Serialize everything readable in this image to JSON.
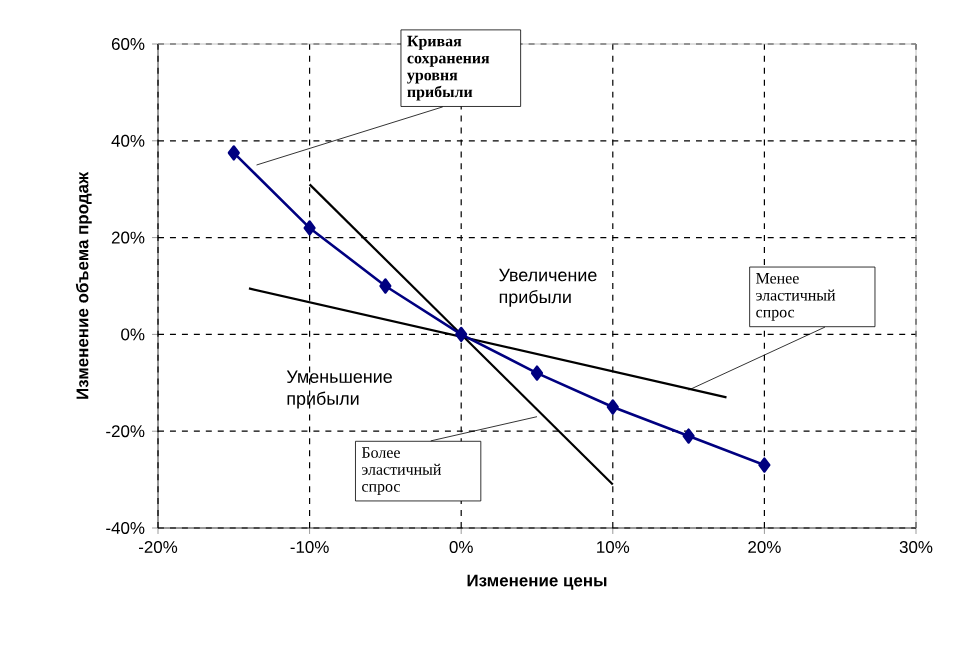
{
  "chart_data": {
    "type": "line",
    "xlabel": "Изменение цены",
    "ylabel": "Изменение объема продаж",
    "xlim": [
      -20,
      30
    ],
    "ylim": [
      -40,
      60
    ],
    "xticks": [
      {
        "value": -20,
        "label": "-20%"
      },
      {
        "value": -10,
        "label": "-10%"
      },
      {
        "value": 0,
        "label": "0%"
      },
      {
        "value": 10,
        "label": "10%"
      },
      {
        "value": 20,
        "label": "20%"
      },
      {
        "value": 30,
        "label": "30%"
      }
    ],
    "yticks": [
      {
        "value": -40,
        "label": "-40%"
      },
      {
        "value": -20,
        "label": "-20%"
      },
      {
        "value": 0,
        "label": "0%"
      },
      {
        "value": 20,
        "label": "20%"
      },
      {
        "value": 40,
        "label": "40%"
      },
      {
        "value": 60,
        "label": "60%"
      }
    ],
    "grid": true,
    "series": [
      {
        "color": "#000080",
        "marker": "diamond",
        "x": [
          -15,
          -10,
          -5,
          0,
          5,
          10,
          15,
          20
        ],
        "values": [
          37.5,
          22,
          10,
          0,
          -8,
          -15,
          -21,
          -27
        ]
      },
      {
        "color": "#000000",
        "marker": "none",
        "x": [
          -10,
          10
        ],
        "values": [
          31,
          -31
        ]
      },
      {
        "color": "#000000",
        "marker": "none",
        "x": [
          -14,
          17.5
        ],
        "values": [
          9.5,
          -13
        ]
      }
    ],
    "annotations": [
      {
        "text": "**Кривая сохранения уровня прибыли**",
        "x": -13.5,
        "y": 35
      },
      "Увеличение прибыли",
      {
        "text": "Менее эластичный спрос",
        "x": 15,
        "y": -11.5
      },
      "Уменьшение прибыли",
      {
        "text": "Более эластичный спрос",
        "x": 5,
        "y": -17
      }
    ]
  }
}
